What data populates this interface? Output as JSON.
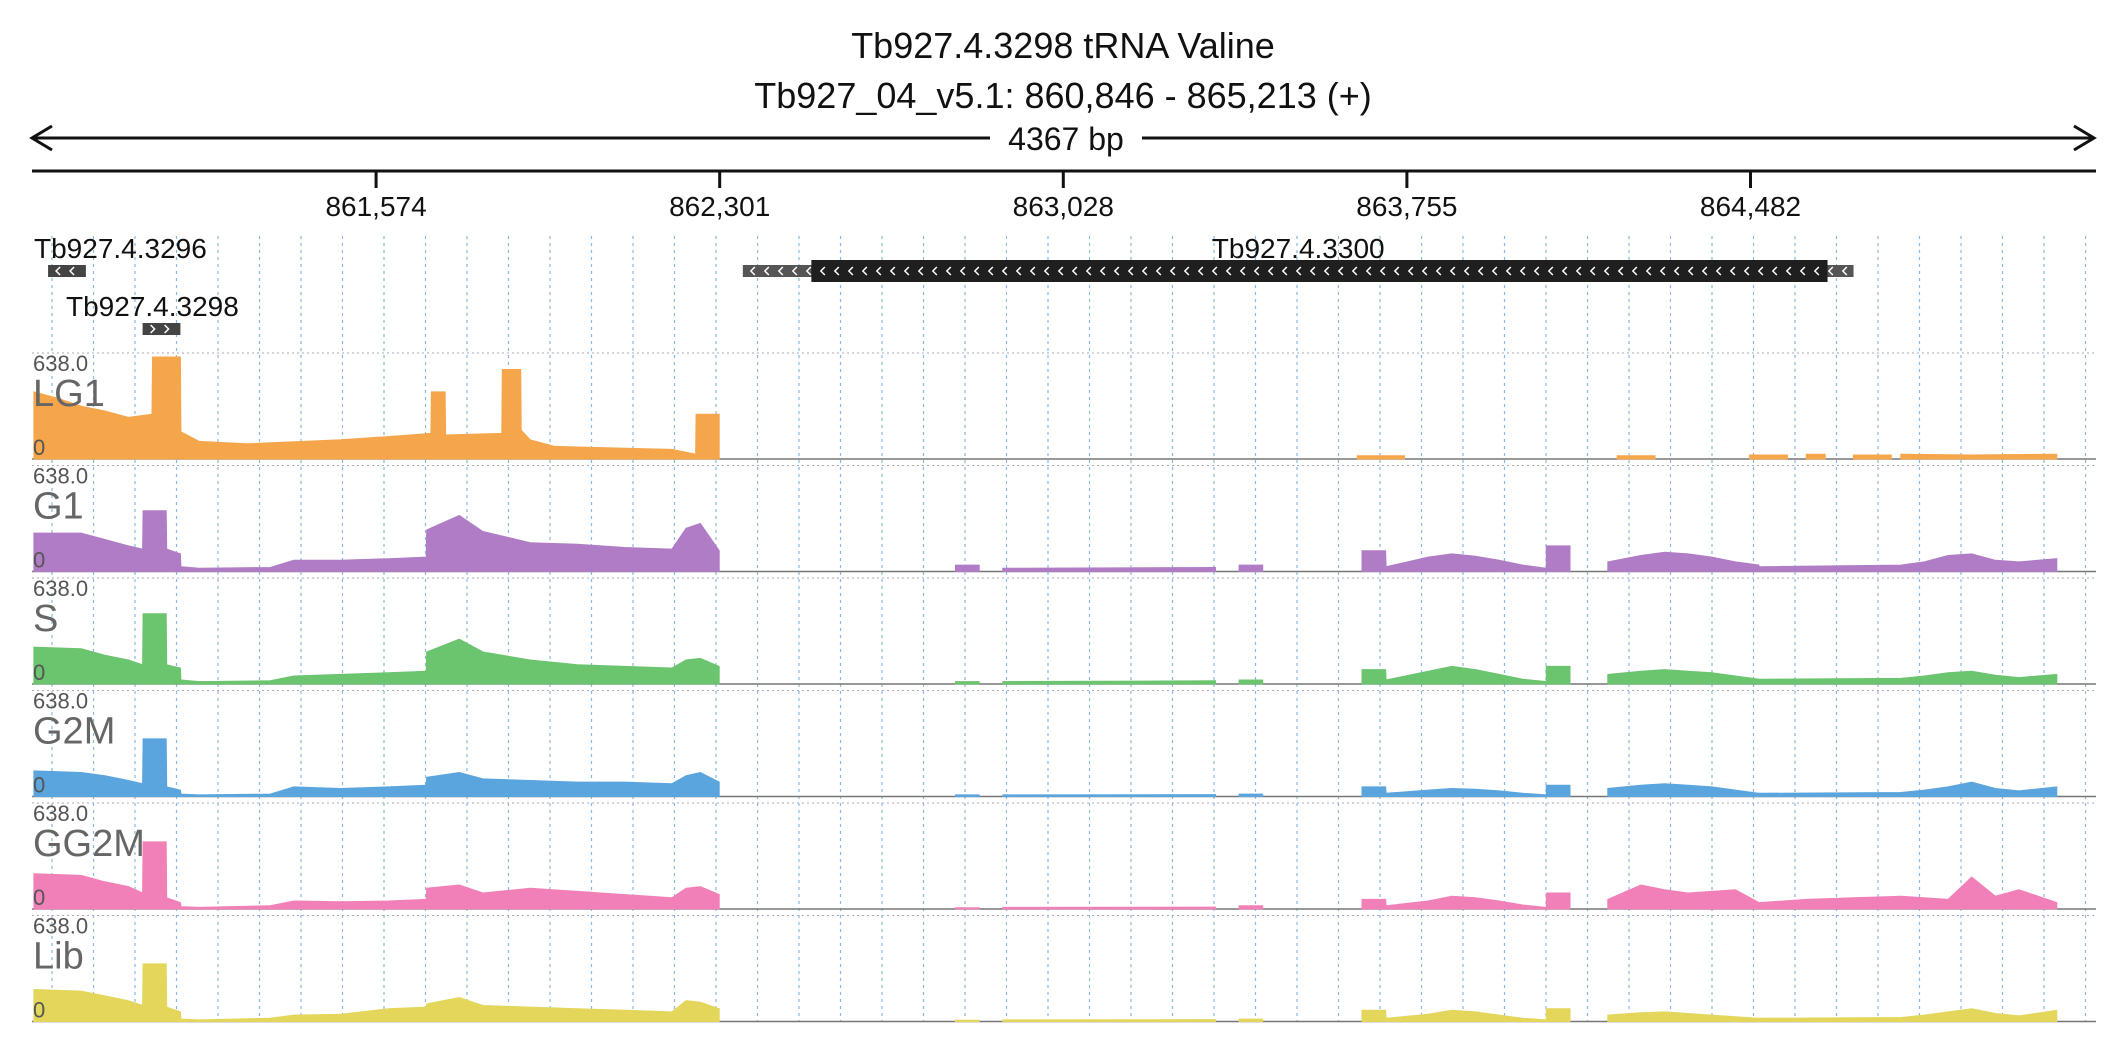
{
  "header": {
    "title": "Tb927.4.3298  tRNA Valine",
    "subtitle": "Tb927_04_v5.1: 860,846 - 865,213 (+)",
    "span_label": "4367 bp"
  },
  "genes": [
    {
      "name": "Tb927.4.3296",
      "strand": "-",
      "start": 860880,
      "end": 860960
    },
    {
      "name": "Tb927.4.3298",
      "strand": "+",
      "start": 861080,
      "end": 861160
    },
    {
      "name": "Tb927.4.3300",
      "strand": "-",
      "start": 862350,
      "end": 864700,
      "cds_start": 862495,
      "cds_end": 864645
    }
  ],
  "colors": {
    "LG1": "#f5a54a",
    "G1": "#b07cc6",
    "S": "#6bc46e",
    "G2M": "#5aa5dd",
    "GG2M": "#f280b8",
    "Lib": "#e3d65a",
    "gene": "#1f1f1f",
    "grid": "#8ab8e0"
  },
  "chart_data": {
    "type": "area",
    "region": {
      "chrom": "Tb927_04_v5.1",
      "start": 860846,
      "end": 865213
    },
    "x_ticks": [
      {
        "pos": 861574,
        "label": "861,574"
      },
      {
        "pos": 862301,
        "label": "862,301"
      },
      {
        "pos": 863028,
        "label": "863,028"
      },
      {
        "pos": 863755,
        "label": "863,755"
      },
      {
        "pos": 864482,
        "label": "864,482"
      }
    ],
    "ylim": [
      0,
      638.0
    ],
    "ymax_label": "638.0",
    "ymin_label": "0",
    "series": [
      {
        "name": "LG1",
        "segments": [
          {
            "x": [
              860850,
              860900,
              860950,
              861000,
              861050,
              861100,
              861101,
              861160,
              861161,
              861200,
              861300,
              861500,
              861600,
              861690,
              861691,
              861720,
              861721,
              861840,
              861841,
              861880,
              861881,
              861900,
              861950,
              862000,
              862200,
              862250,
              862251,
              862300
            ],
            "y": [
              420,
              380,
              330,
              300,
              260,
              280,
              640,
              640,
              170,
              110,
              95,
              120,
              140,
              160,
              420,
              420,
              150,
              160,
              560,
              560,
              180,
              120,
              80,
              75,
              60,
              30,
              280,
              280
            ]
          },
          {
            "x": [
              863650,
              863750
            ],
            "y": [
              20,
              20
            ]
          },
          {
            "x": [
              864200,
              864280
            ],
            "y": [
              20,
              20
            ]
          },
          {
            "x": [
              864480,
              864560
            ],
            "y": [
              25,
              25
            ]
          },
          {
            "x": [
              864600,
              864640
            ],
            "y": [
              30,
              30
            ]
          },
          {
            "x": [
              864700,
              864780
            ],
            "y": [
              25,
              25
            ]
          },
          {
            "x": [
              864800,
              864950,
              865130
            ],
            "y": [
              30,
              25,
              30
            ]
          }
        ]
      },
      {
        "name": "G1",
        "segments": [
          {
            "x": [
              860850,
              860950,
              861000,
              861050,
              861080,
              861081,
              861130,
              861131,
              861160,
              861161,
              861200,
              861350,
              861400,
              861500,
              861600,
              861680,
              861681,
              861750,
              861800,
              861900,
              862000,
              862100,
              862200,
              862230,
              862260,
              862300
            ],
            "y": [
              240,
              240,
              200,
              160,
              140,
              380,
              380,
              140,
              110,
              30,
              20,
              25,
              70,
              70,
              80,
              90,
              260,
              350,
              250,
              180,
              170,
              150,
              140,
              270,
              300,
              130
            ]
          },
          {
            "x": [
              862800,
              862850
            ],
            "y": [
              40,
              40
            ]
          },
          {
            "x": [
              862900,
              863350
            ],
            "y": [
              20,
              25
            ]
          },
          {
            "x": [
              863400,
              863450
            ],
            "y": [
              40,
              40
            ]
          },
          {
            "x": [
              863660,
              863710,
              863711,
              863800,
              863850,
              863900,
              863950,
              864000,
              864050
            ],
            "y": [
              130,
              130,
              30,
              90,
              110,
              95,
              70,
              40,
              20
            ]
          },
          {
            "x": [
              864050,
              864100
            ],
            "y": [
              160,
              160
            ]
          },
          {
            "x": [
              864180,
              864250,
              864300,
              864350,
              864400,
              864450,
              864500
            ],
            "y": [
              60,
              100,
              120,
              110,
              90,
              60,
              40
            ]
          },
          {
            "x": [
              864500,
              864800,
              864850,
              864900,
              864950,
              865000,
              865050,
              865130
            ],
            "y": [
              30,
              40,
              60,
              100,
              110,
              70,
              60,
              80
            ]
          }
        ]
      },
      {
        "name": "S",
        "segments": [
          {
            "x": [
              860850,
              860950,
              861000,
              861050,
              861080,
              861081,
              861130,
              861131,
              861160,
              861161,
              861200,
              861350,
              861400,
              861500,
              861600,
              861680,
              861681,
              861750,
              861800,
              861900,
              862000,
              862100,
              862200,
              862230,
              862260,
              862300
            ],
            "y": [
              230,
              220,
              180,
              150,
              120,
              440,
              440,
              120,
              100,
              25,
              15,
              20,
              50,
              60,
              70,
              80,
              200,
              280,
              200,
              150,
              120,
              110,
              100,
              150,
              160,
              110
            ]
          },
          {
            "x": [
              862800,
              862850
            ],
            "y": [
              15,
              15
            ]
          },
          {
            "x": [
              862900,
              863350
            ],
            "y": [
              15,
              20
            ]
          },
          {
            "x": [
              863400,
              863450
            ],
            "y": [
              25,
              25
            ]
          },
          {
            "x": [
              863660,
              863710,
              863711,
              863800,
              863850,
              863900,
              863950,
              864000,
              864050
            ],
            "y": [
              90,
              90,
              25,
              80,
              110,
              90,
              60,
              30,
              15
            ]
          },
          {
            "x": [
              864050,
              864100
            ],
            "y": [
              110,
              110
            ]
          },
          {
            "x": [
              864180,
              864250,
              864300,
              864350,
              864400,
              864450,
              864500
            ],
            "y": [
              60,
              80,
              90,
              80,
              70,
              50,
              30
            ]
          },
          {
            "x": [
              864500,
              864800,
              864850,
              864900,
              864950,
              865000,
              865050,
              865130
            ],
            "y": [
              30,
              35,
              50,
              70,
              80,
              55,
              40,
              60
            ]
          }
        ]
      },
      {
        "name": "G2M",
        "segments": [
          {
            "x": [
              860850,
              860950,
              861000,
              861050,
              861080,
              861081,
              861130,
              861131,
              861160,
              861161,
              861200,
              861350,
              861400,
              861500,
              861600,
              861680,
              861681,
              861750,
              861800,
              861900,
              862000,
              862100,
              862200,
              862230,
              862260,
              862300
            ],
            "y": [
              160,
              150,
              130,
              100,
              80,
              360,
              360,
              60,
              40,
              15,
              10,
              15,
              60,
              50,
              60,
              70,
              120,
              150,
              110,
              100,
              90,
              90,
              80,
              130,
              150,
              90
            ]
          },
          {
            "x": [
              862800,
              862850
            ],
            "y": [
              10,
              10
            ]
          },
          {
            "x": [
              862900,
              863350
            ],
            "y": [
              10,
              12
            ]
          },
          {
            "x": [
              863400,
              863450
            ],
            "y": [
              15,
              15
            ]
          },
          {
            "x": [
              863660,
              863710,
              863711,
              863800,
              863850,
              863900,
              863950,
              864000,
              864050
            ],
            "y": [
              60,
              60,
              20,
              40,
              50,
              45,
              35,
              20,
              10
            ]
          },
          {
            "x": [
              864050,
              864100
            ],
            "y": [
              70,
              70
            ]
          },
          {
            "x": [
              864180,
              864250,
              864300,
              864350,
              864400,
              864450,
              864500
            ],
            "y": [
              50,
              70,
              80,
              70,
              60,
              40,
              20
            ]
          },
          {
            "x": [
              864500,
              864800,
              864850,
              864900,
              864950,
              865000,
              865050,
              865130
            ],
            "y": [
              20,
              25,
              40,
              60,
              90,
              50,
              35,
              60
            ]
          }
        ]
      },
      {
        "name": "GG2M",
        "segments": [
          {
            "x": [
              860850,
              860950,
              861000,
              861050,
              861080,
              861081,
              861130,
              861131,
              861160,
              861161,
              861200,
              861350,
              861400,
              861500,
              861600,
              861680,
              861681,
              861750,
              861800,
              861900,
              862000,
              862100,
              862200,
              862230,
              862260,
              862300
            ],
            "y": [
              220,
              210,
              170,
              140,
              100,
              420,
              420,
              70,
              40,
              15,
              10,
              20,
              50,
              45,
              50,
              60,
              130,
              150,
              100,
              130,
              110,
              90,
              70,
              130,
              140,
              90
            ]
          },
          {
            "x": [
              862800,
              862850
            ],
            "y": [
              8,
              8
            ]
          },
          {
            "x": [
              862900,
              863350
            ],
            "y": [
              10,
              12
            ]
          },
          {
            "x": [
              863400,
              863450
            ],
            "y": [
              20,
              20
            ]
          },
          {
            "x": [
              863660,
              863710,
              863711,
              863800,
              863850,
              863900,
              863950,
              864000,
              864050
            ],
            "y": [
              60,
              60,
              20,
              50,
              80,
              70,
              50,
              25,
              10
            ]
          },
          {
            "x": [
              864050,
              864100
            ],
            "y": [
              100,
              100
            ]
          },
          {
            "x": [
              864180,
              864250,
              864300,
              864350,
              864400,
              864450,
              864500
            ],
            "y": [
              60,
              150,
              120,
              100,
              110,
              120,
              40
            ]
          },
          {
            "x": [
              864500,
              864600,
              864700,
              864800,
              864850,
              864900,
              864950,
              865000,
              865050,
              865130
            ],
            "y": [
              40,
              60,
              70,
              80,
              70,
              60,
              200,
              80,
              120,
              40
            ]
          }
        ]
      },
      {
        "name": "Lib",
        "segments": [
          {
            "x": [
              860850,
              860950,
              861000,
              861050,
              861080,
              861081,
              861130,
              861131,
              861160,
              861161,
              861200,
              861350,
              861400,
              861500,
              861600,
              861680,
              861681,
              861750,
              861800,
              861900,
              862000,
              862100,
              862200,
              862230,
              862260,
              862300
            ],
            "y": [
              200,
              190,
              160,
              130,
              100,
              360,
              360,
              90,
              60,
              15,
              10,
              20,
              40,
              45,
              80,
              90,
              110,
              150,
              100,
              90,
              80,
              70,
              60,
              130,
              120,
              80
            ]
          },
          {
            "x": [
              862800,
              862850
            ],
            "y": [
              8,
              8
            ]
          },
          {
            "x": [
              862900,
              863350
            ],
            "y": [
              10,
              12
            ]
          },
          {
            "x": [
              863400,
              863450
            ],
            "y": [
              15,
              15
            ]
          },
          {
            "x": [
              863660,
              863710,
              863711,
              863800,
              863850,
              863900,
              863950,
              864000,
              864050
            ],
            "y": [
              70,
              70,
              20,
              45,
              70,
              60,
              40,
              20,
              10
            ]
          },
          {
            "x": [
              864050,
              864100
            ],
            "y": [
              80,
              80
            ]
          },
          {
            "x": [
              864180,
              864250,
              864300,
              864350,
              864400,
              864450,
              864500
            ],
            "y": [
              40,
              55,
              60,
              50,
              40,
              30,
              20
            ]
          },
          {
            "x": [
              864500,
              864800,
              864850,
              864900,
              864950,
              865000,
              865050,
              865130
            ],
            "y": [
              20,
              25,
              40,
              60,
              80,
              50,
              35,
              70
            ]
          }
        ]
      }
    ]
  }
}
